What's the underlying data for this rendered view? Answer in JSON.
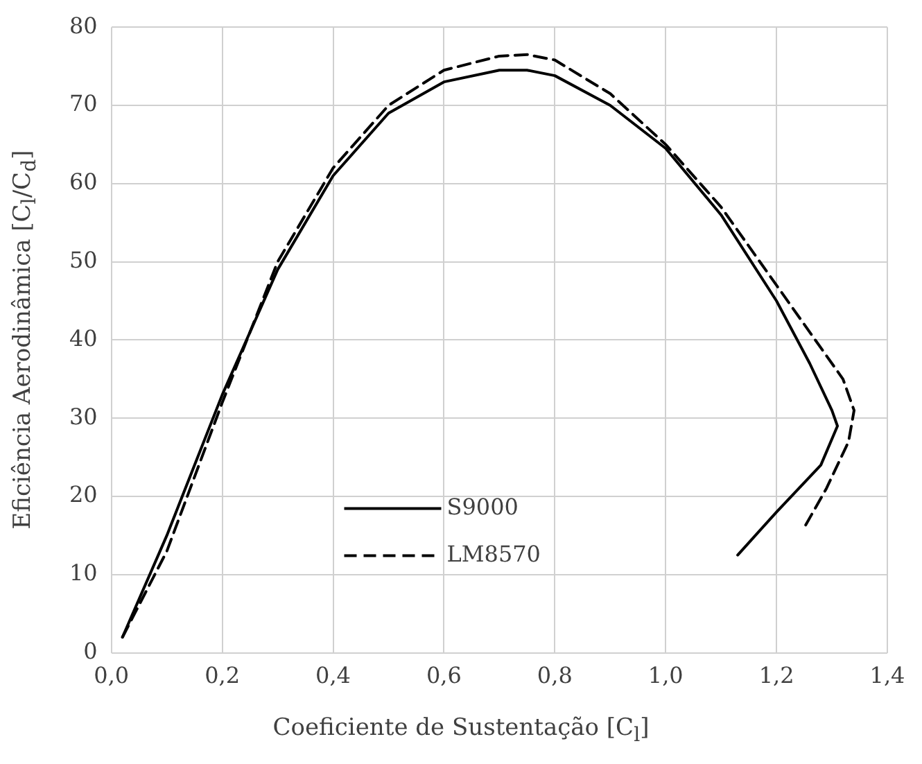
{
  "chart_data": {
    "type": "line",
    "xlabel": "Coeficiente de Sustentação [C$_{l}$]",
    "ylabel": "Eficiência Aerodinâmica  [C$_{l}$/C$_{d}$]",
    "xlim": [
      0,
      1.4
    ],
    "xticks": [
      {
        "value": 0,
        "label": "0,0"
      },
      {
        "value": 0.2,
        "label": "0,2"
      },
      {
        "value": 0.4,
        "label": "0,4"
      },
      {
        "value": 0.6,
        "label": "0,6"
      },
      {
        "value": 0.8,
        "label": "0,8"
      },
      {
        "value": 1.0,
        "label": "1,0"
      },
      {
        "value": 1.2,
        "label": "1,2"
      },
      {
        "value": 1.4,
        "label": "1,4"
      }
    ],
    "ylim": [
      0,
      80
    ],
    "yticks": [
      0,
      10,
      20,
      30,
      40,
      50,
      60,
      70,
      80
    ],
    "grid": true,
    "legend": "bottom",
    "marker": "none",
    "series": [
      {
        "name": "S9000",
        "color": "#000000",
        "line_style": "solid",
        "x": [
          0.02,
          0.1,
          0.2,
          0.3,
          0.4,
          0.5,
          0.6,
          0.7,
          0.75,
          0.8,
          0.9,
          1.0,
          1.1,
          1.2,
          1.26,
          1.3,
          1.31,
          1.28,
          1.2,
          1.13
        ],
        "values": [
          2,
          15,
          33,
          49,
          61,
          69,
          73,
          74.5,
          74.5,
          73.8,
          70,
          64.5,
          56,
          45,
          37,
          31,
          29,
          24,
          18,
          12.5
        ]
      },
      {
        "name": "LM8570",
        "color": "#000000",
        "line_style": "dashed",
        "x": [
          0.02,
          0.1,
          0.2,
          0.3,
          0.4,
          0.5,
          0.6,
          0.7,
          0.75,
          0.8,
          0.9,
          1.0,
          1.1,
          1.2,
          1.28,
          1.32,
          1.34,
          1.33,
          1.29,
          1.25
        ],
        "values": [
          2,
          13,
          32,
          50,
          62,
          70,
          74.5,
          76.3,
          76.5,
          75.8,
          71.5,
          65,
          57,
          47,
          39,
          35,
          31,
          27,
          21,
          16
        ]
      }
    ]
  }
}
